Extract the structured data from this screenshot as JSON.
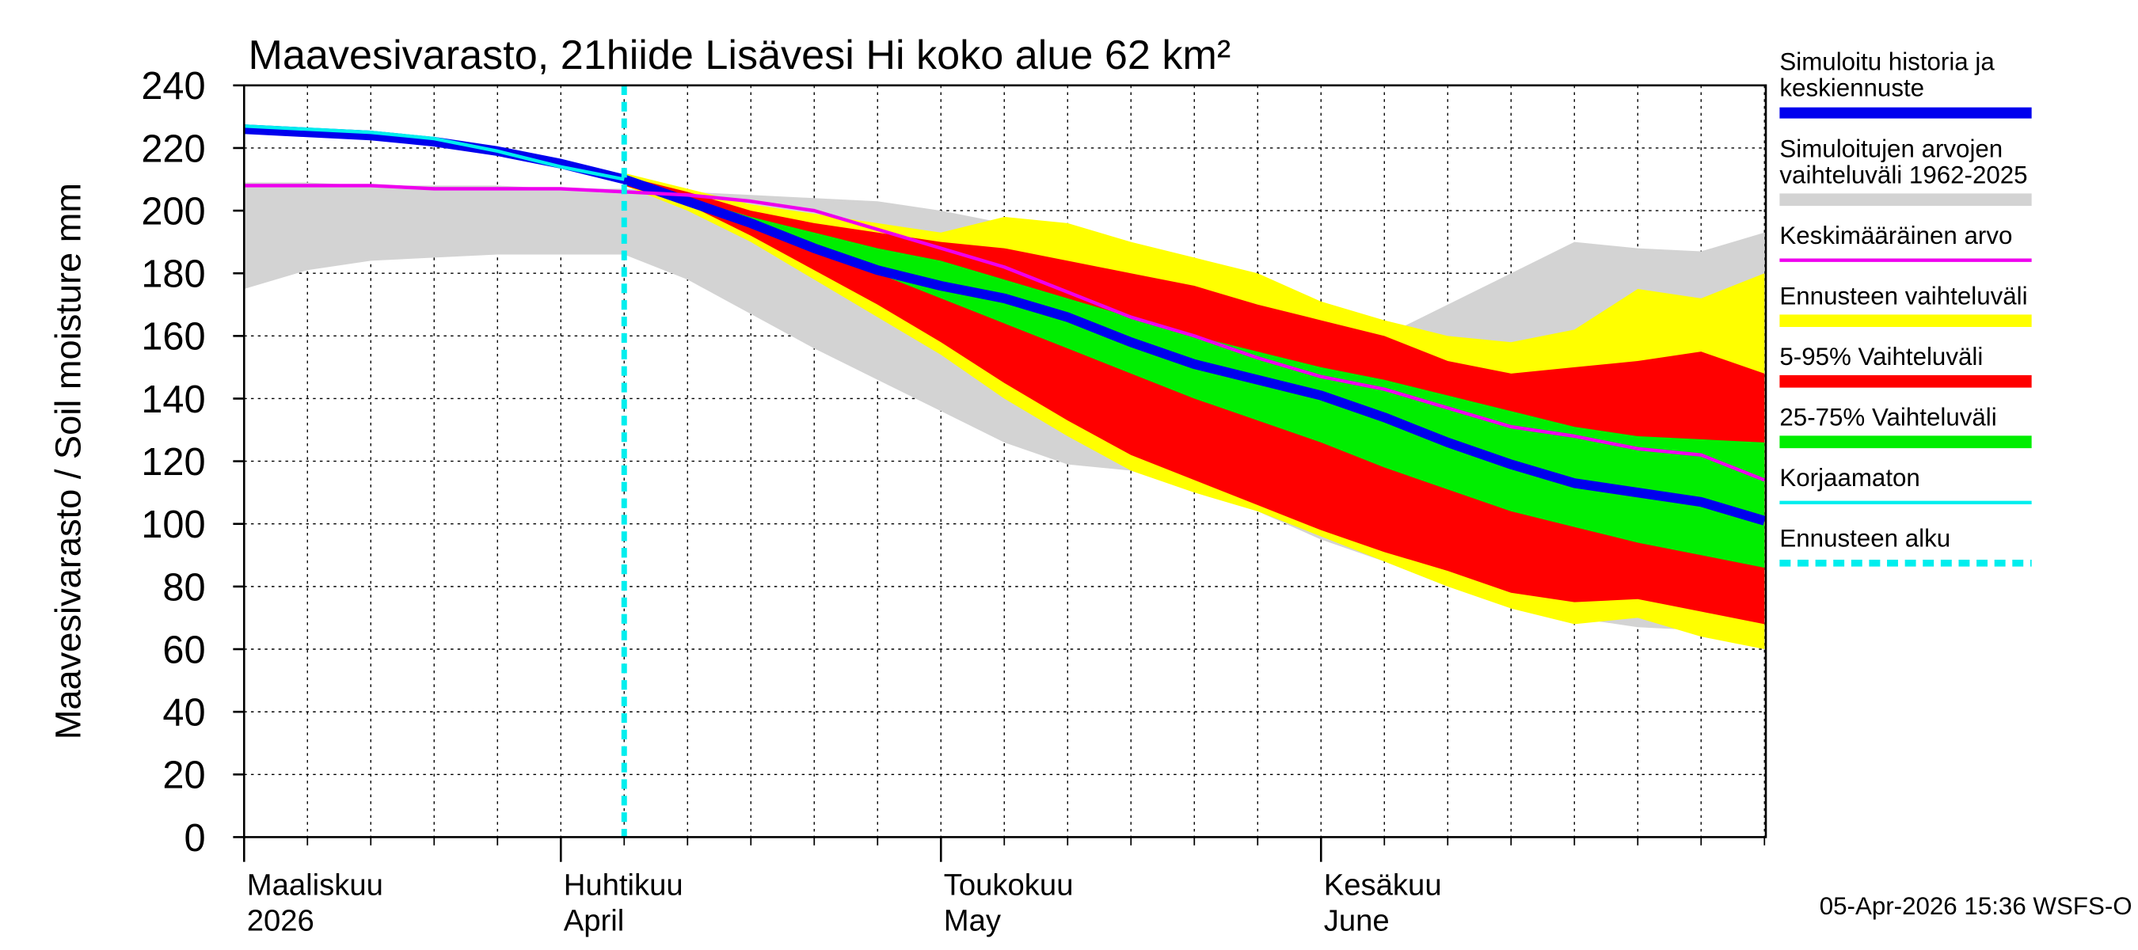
{
  "chart_data": {
    "type": "band-line",
    "title": "Maavesivarasto, 21hiide Lisävesi Hi koko alue 62 km²",
    "y_label": "Maavesivarasto / Soil moisture   mm",
    "footer": "05-Apr-2026 15:36 WSFS-O",
    "categories": [
      [
        "Maaliskuu",
        "2026"
      ],
      null,
      null,
      null,
      null,
      [
        "Huhtikuu",
        "April"
      ],
      null,
      null,
      null,
      null,
      null,
      [
        "Toukokuu",
        "May"
      ],
      null,
      null,
      null,
      null,
      null,
      [
        "Kesäkuu",
        "June"
      ],
      null,
      null,
      null,
      null,
      null,
      null,
      null
    ],
    "ylim": [
      0,
      240
    ],
    "yticks": [
      0,
      20,
      40,
      60,
      80,
      100,
      120,
      140,
      160,
      180,
      200,
      220,
      240
    ],
    "grid": true,
    "forecast_start": 6,
    "series": [
      {
        "name": [
          "Simuloitu historia ja",
          "keskiennuste"
        ],
        "kind": "line",
        "style": "thick",
        "color": "#0000ee",
        "values": [
          226,
          225,
          224,
          222,
          219,
          215,
          210,
          203,
          196,
          188,
          181,
          176,
          172,
          166,
          158,
          151,
          146,
          141,
          134,
          126,
          119,
          113,
          110,
          107,
          101
        ]
      },
      {
        "name": [
          "Simuloitujen arvojen",
          "vaihteluväli 1962-2025"
        ],
        "kind": "band",
        "color": "#d3d3d3",
        "low": [
          175,
          181,
          184,
          185,
          186,
          186,
          186,
          178,
          167,
          156,
          146,
          136,
          126,
          119,
          117,
          112,
          104,
          95,
          88,
          80,
          74,
          70,
          67,
          66,
          65
        ],
        "high": [
          209,
          209,
          208,
          208,
          208,
          207,
          207,
          206,
          205,
          204,
          203,
          200,
          196,
          194,
          188,
          184,
          170,
          166,
          160,
          170,
          180,
          190,
          188,
          187,
          193
        ]
      },
      {
        "name": [
          "Keskimääräinen arvo"
        ],
        "kind": "line",
        "style": "thin",
        "color": "#ee00ee",
        "values": [
          208,
          208,
          208,
          207,
          207,
          207,
          206,
          205,
          203,
          200,
          194,
          188,
          182,
          174,
          166,
          160,
          153,
          147,
          143,
          137,
          131,
          128,
          124,
          122,
          114
        ]
      },
      {
        "name": [
          "Ennusteen vaihteluväli"
        ],
        "kind": "band",
        "color": "#ffff00",
        "low": [
          null,
          null,
          null,
          null,
          null,
          null,
          208,
          200,
          190,
          178,
          166,
          154,
          140,
          128,
          117,
          110,
          104,
          96,
          88,
          80,
          73,
          68,
          70,
          64,
          60
        ],
        "high": [
          null,
          null,
          null,
          null,
          null,
          null,
          212,
          207,
          202,
          199,
          196,
          193,
          198,
          196,
          190,
          185,
          180,
          171,
          165,
          160,
          158,
          162,
          175,
          172,
          180
        ]
      },
      {
        "name": [
          "5-95% Vaihteluväli"
        ],
        "kind": "band",
        "color": "#ff0000",
        "low": [
          null,
          null,
          null,
          null,
          null,
          null,
          208,
          202,
          192,
          181,
          170,
          158,
          145,
          133,
          122,
          114,
          106,
          98,
          91,
          85,
          78,
          75,
          76,
          72,
          68
        ],
        "high": [
          null,
          null,
          null,
          null,
          null,
          null,
          211,
          206,
          200,
          196,
          193,
          190,
          188,
          184,
          180,
          176,
          170,
          165,
          160,
          152,
          148,
          150,
          152,
          155,
          148
        ]
      },
      {
        "name": [
          "25-75% Vaihteluväli"
        ],
        "kind": "band",
        "color": "#00ee00",
        "low": [
          null,
          null,
          null,
          null,
          null,
          null,
          209,
          203,
          195,
          188,
          180,
          172,
          164,
          156,
          148,
          140,
          133,
          126,
          118,
          111,
          104,
          99,
          94,
          90,
          86
        ],
        "high": [
          null,
          null,
          null,
          null,
          null,
          null,
          210,
          204,
          198,
          193,
          188,
          184,
          178,
          172,
          166,
          160,
          155,
          150,
          146,
          141,
          136,
          131,
          128,
          127,
          126
        ]
      },
      {
        "name": [
          "Korjaamaton"
        ],
        "kind": "line",
        "style": "thin",
        "color": "#00eeee",
        "values": [
          227,
          226,
          225,
          223,
          219,
          214,
          210,
          null,
          null,
          null,
          null,
          null,
          null,
          null,
          null,
          null,
          null,
          null,
          null,
          null,
          null,
          null,
          null,
          null,
          null
        ]
      },
      {
        "name": [
          "Ennusteen alku"
        ],
        "kind": "vline",
        "color": "#00eeee"
      }
    ]
  }
}
